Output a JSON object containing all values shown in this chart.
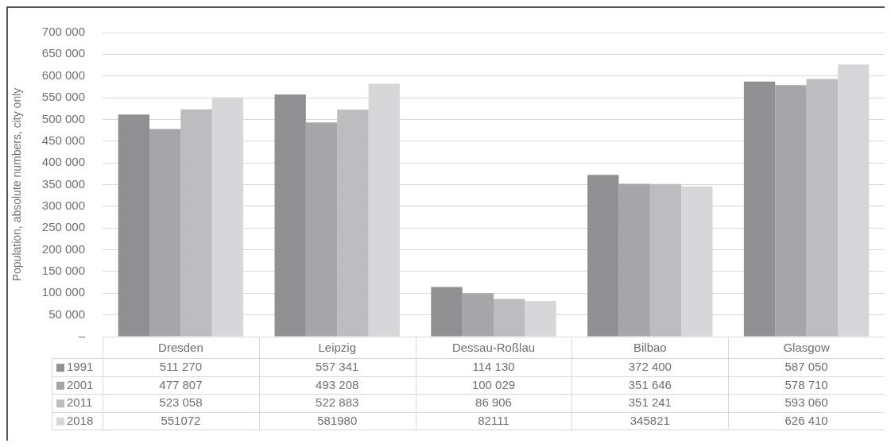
{
  "chart_data": {
    "type": "bar",
    "ylabel": "Population, absolute numbers, city only",
    "categories": [
      "Dresden",
      "Leipzig",
      "Dessau-Roßlau",
      "Bilbao",
      "Glasgow"
    ],
    "series": [
      {
        "name": "1991",
        "color": "#909093",
        "values": [
          511270,
          557341,
          114130,
          372400,
          587050
        ],
        "value_labels": [
          "511 270",
          "557 341",
          "114 130",
          "372 400",
          "587 050"
        ]
      },
      {
        "name": "2001",
        "color": "#a6a6a9",
        "values": [
          477807,
          493208,
          100029,
          351646,
          578710
        ],
        "value_labels": [
          "477 807",
          "493 208",
          "100 029",
          "351 646",
          "578 710"
        ]
      },
      {
        "name": "2011",
        "color": "#bdbdbf",
        "values": [
          523058,
          522883,
          86906,
          351241,
          593060
        ],
        "value_labels": [
          "523 058",
          "522 883",
          "86 906",
          "351 241",
          "593 060"
        ]
      },
      {
        "name": "2018",
        "color": "#d7d7d9",
        "values": [
          551072,
          581980,
          82111,
          345821,
          626410
        ],
        "value_labels": [
          "551072",
          "581980",
          "82111",
          "345821",
          "626 410"
        ]
      }
    ],
    "ylim": [
      0,
      700000
    ],
    "yticks": [
      {
        "value": 0,
        "label": "–"
      },
      {
        "value": 50000,
        "label": "50 000"
      },
      {
        "value": 100000,
        "label": "100 000"
      },
      {
        "value": 150000,
        "label": "150 000"
      },
      {
        "value": 200000,
        "label": "200 000"
      },
      {
        "value": 250000,
        "label": "250 000"
      },
      {
        "value": 300000,
        "label": "300 000"
      },
      {
        "value": 350000,
        "label": "350 000"
      },
      {
        "value": 400000,
        "label": "400 000"
      },
      {
        "value": 450000,
        "label": "450 000"
      },
      {
        "value": 500000,
        "label": "500 000"
      },
      {
        "value": 550000,
        "label": "550 000"
      },
      {
        "value": 600000,
        "label": "600 000"
      },
      {
        "value": 650000,
        "label": "650 000"
      },
      {
        "value": 700000,
        "label": "700 000"
      }
    ],
    "grid": "y",
    "legend": "bottom left"
  }
}
